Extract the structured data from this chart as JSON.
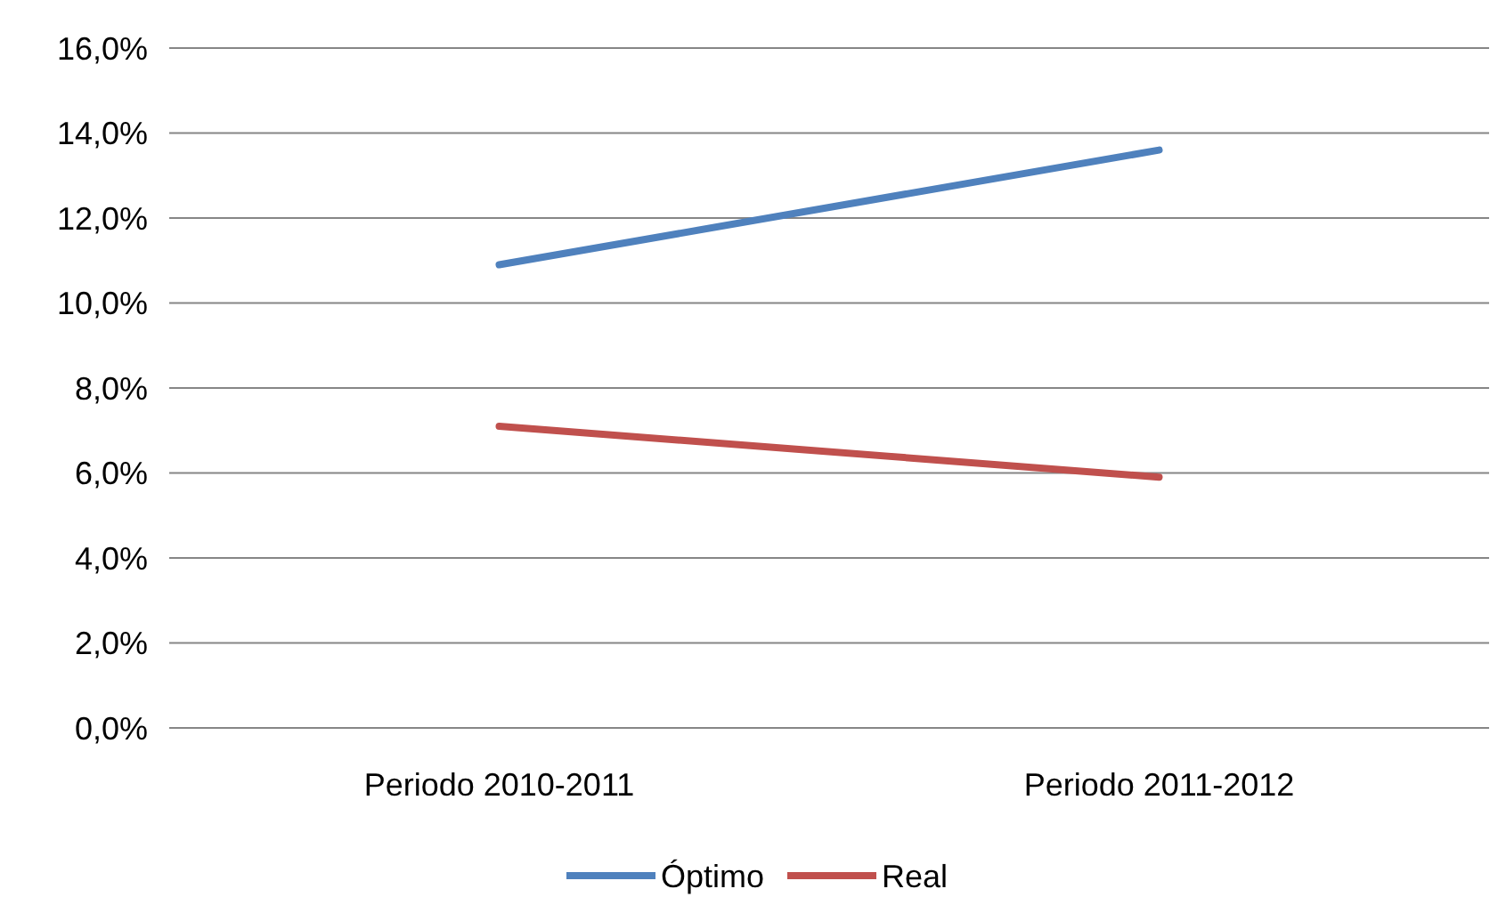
{
  "chart_data": {
    "type": "line",
    "categories": [
      "Periodo 2010-2011",
      "Periodo 2011-2012"
    ],
    "series": [
      {
        "name": "Óptimo",
        "color": "#4f81bd",
        "values": [
          10.9,
          13.6
        ]
      },
      {
        "name": "Real",
        "color": "#c0504d",
        "values": [
          7.1,
          5.9
        ]
      }
    ],
    "ylim": [
      0,
      16
    ],
    "yticks": [
      {
        "value": 0,
        "label": "0,0%"
      },
      {
        "value": 2,
        "label": "2,0%"
      },
      {
        "value": 4,
        "label": "4,0%"
      },
      {
        "value": 6,
        "label": "6,0%"
      },
      {
        "value": 8,
        "label": "8,0%"
      },
      {
        "value": 10,
        "label": "10,0%"
      },
      {
        "value": 12,
        "label": "12,0%"
      },
      {
        "value": 14,
        "label": "14,0%"
      },
      {
        "value": 16,
        "label": "16,0%"
      }
    ],
    "grid": "y",
    "legend": "bottom",
    "marker": "none",
    "line_style": "solid"
  }
}
